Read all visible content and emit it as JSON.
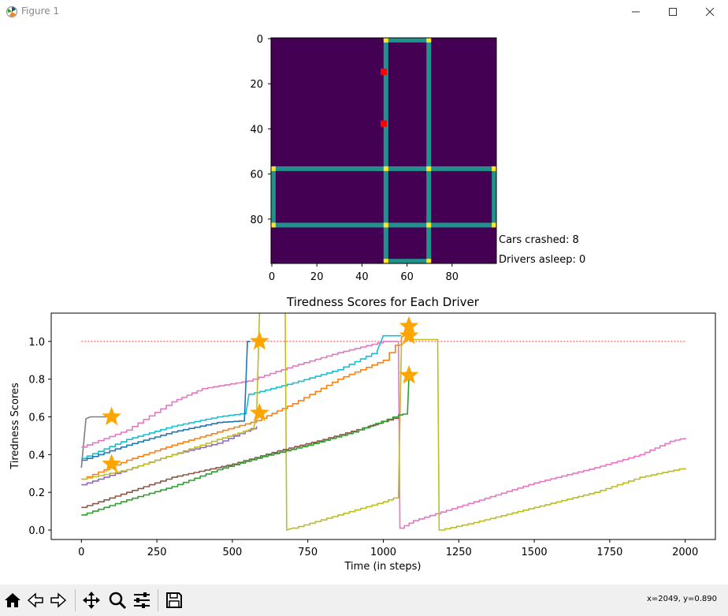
{
  "window": {
    "title": "Figure 1",
    "minimize_icon": "minimize-icon",
    "maximize_icon": "maximize-icon",
    "close_icon": "close-icon"
  },
  "status": {
    "cars_crashed": "Cars crashed: 8",
    "drivers_asleep": "Drivers asleep: 0"
  },
  "toolbar": {
    "buttons": [
      "home-icon",
      "back-arrow-icon",
      "forward-arrow-icon",
      "pan-icon",
      "zoom-icon",
      "configure-subplots-icon",
      "save-icon"
    ],
    "coords": "x=2049, y=0.890"
  },
  "colors": {
    "map_background": "#440154",
    "map_road": "#21918c",
    "map_junction": "#fde725",
    "map_car": "#ff0000",
    "threshold": "#ff0000",
    "star": "#ffa500"
  },
  "chart_data": [
    {
      "type": "heatmap",
      "title": "",
      "xlim": [
        0,
        100
      ],
      "ylim": [
        100,
        0
      ],
      "xticks": [
        "0",
        "20",
        "40",
        "60",
        "80"
      ],
      "yticks": [
        "0",
        "20",
        "40",
        "60",
        "80"
      ],
      "grid": false,
      "cars": [
        {
          "x": 50,
          "y": 15
        },
        {
          "x": 50,
          "y": 38
        }
      ]
    },
    {
      "type": "line",
      "title": "Tiredness Scores for Each Driver",
      "xlabel": "Time (in steps)",
      "ylabel": "Tiredness Scores",
      "xlim": [
        -100,
        2100
      ],
      "ylim": [
        -0.05,
        1.15
      ],
      "xticks": [
        "0",
        "250",
        "500",
        "750",
        "1000",
        "1250",
        "1500",
        "1750",
        "2000"
      ],
      "yticks": [
        "0.0",
        "0.2",
        "0.4",
        "0.6",
        "0.8",
        "1.0"
      ],
      "grid": false,
      "legend": "none",
      "threshold": 1.0,
      "series": [
        {
          "color": "#7f7f7f",
          "points": [
            [
              0,
              0.33
            ],
            [
              15,
              0.59
            ],
            [
              30,
              0.6
            ],
            [
              100,
              0.6
            ]
          ]
        },
        {
          "color": "#e377c2",
          "points": [
            [
              0,
              0.44
            ],
            [
              150,
              0.53
            ],
            [
              300,
              0.68
            ],
            [
              400,
              0.75
            ],
            [
              550,
              0.79
            ],
            [
              700,
              0.87
            ],
            [
              850,
              0.94
            ],
            [
              1000,
              1.0
            ],
            [
              1050,
              1.0
            ],
            [
              1055,
              0.01
            ],
            [
              1100,
              0.05
            ],
            [
              1300,
              0.15
            ],
            [
              1500,
              0.25
            ],
            [
              1700,
              0.33
            ],
            [
              1850,
              0.4
            ],
            [
              1950,
              0.47
            ],
            [
              2000,
              0.49
            ]
          ]
        },
        {
          "color": "#17becf",
          "points": [
            [
              0,
              0.38
            ],
            [
              150,
              0.48
            ],
            [
              300,
              0.55
            ],
            [
              450,
              0.6
            ],
            [
              545,
              0.62
            ],
            [
              555,
              0.72
            ],
            [
              700,
              0.78
            ],
            [
              850,
              0.85
            ],
            [
              980,
              0.95
            ],
            [
              1000,
              1.03
            ],
            [
              1060,
              1.03
            ]
          ]
        },
        {
          "color": "#1f77b4",
          "points": [
            [
              0,
              0.37
            ],
            [
              150,
              0.45
            ],
            [
              300,
              0.52
            ],
            [
              450,
              0.57
            ],
            [
              540,
              0.58
            ],
            [
              550,
              1.0
            ],
            [
              560,
              1.0
            ]
          ]
        },
        {
          "color": "#ff7f0e",
          "points": [
            [
              0,
              0.27
            ],
            [
              150,
              0.37
            ],
            [
              300,
              0.45
            ],
            [
              450,
              0.52
            ],
            [
              580,
              0.58
            ],
            [
              700,
              0.67
            ],
            [
              850,
              0.8
            ],
            [
              1000,
              0.9
            ],
            [
              1060,
              1.02
            ],
            [
              1080,
              1.05
            ]
          ]
        },
        {
          "color": "#9467bd",
          "points": [
            [
              0,
              0.24
            ],
            [
              150,
              0.32
            ],
            [
              300,
              0.4
            ],
            [
              450,
              0.46
            ],
            [
              580,
              0.55
            ]
          ]
        },
        {
          "color": "#bcbd22",
          "points": [
            [
              0,
              0.27
            ],
            [
              150,
              0.32
            ],
            [
              300,
              0.4
            ],
            [
              450,
              0.48
            ],
            [
              570,
              0.54
            ],
            [
              580,
              0.6
            ],
            [
              590,
              1.15
            ]
          ]
        },
        {
          "color": "#bcbd22",
          "points": [
            [
              675,
              1.15
            ],
            [
              680,
              0.0
            ],
            [
              700,
              0.01
            ],
            [
              850,
              0.08
            ],
            [
              1000,
              0.15
            ],
            [
              1050,
              0.18
            ],
            [
              1060,
              0.98
            ],
            [
              1080,
              1.01
            ],
            [
              1180,
              1.01
            ],
            [
              1185,
              0.0
            ],
            [
              1300,
              0.04
            ],
            [
              1500,
              0.12
            ],
            [
              1700,
              0.2
            ],
            [
              1850,
              0.28
            ],
            [
              2000,
              0.33
            ]
          ]
        },
        {
          "color": "#8c564b",
          "points": [
            [
              0,
              0.12
            ],
            [
              150,
              0.2
            ],
            [
              300,
              0.28
            ],
            [
              500,
              0.35
            ],
            [
              650,
              0.42
            ],
            [
              800,
              0.48
            ],
            [
              950,
              0.55
            ],
            [
              1050,
              0.6
            ]
          ]
        },
        {
          "color": "#2ca02c",
          "points": [
            [
              0,
              0.08
            ],
            [
              150,
              0.16
            ],
            [
              300,
              0.23
            ],
            [
              450,
              0.32
            ],
            [
              600,
              0.39
            ],
            [
              750,
              0.45
            ],
            [
              900,
              0.52
            ],
            [
              1050,
              0.61
            ],
            [
              1080,
              0.62
            ],
            [
              1085,
              0.82
            ]
          ]
        }
      ],
      "stars": [
        {
          "x": 100,
          "y": 0.6
        },
        {
          "x": 100,
          "y": 0.35
        },
        {
          "x": 590,
          "y": 1.0
        },
        {
          "x": 590,
          "y": 0.62
        },
        {
          "x": 1085,
          "y": 1.08
        },
        {
          "x": 1085,
          "y": 1.03
        },
        {
          "x": 1085,
          "y": 0.82
        }
      ]
    }
  ]
}
